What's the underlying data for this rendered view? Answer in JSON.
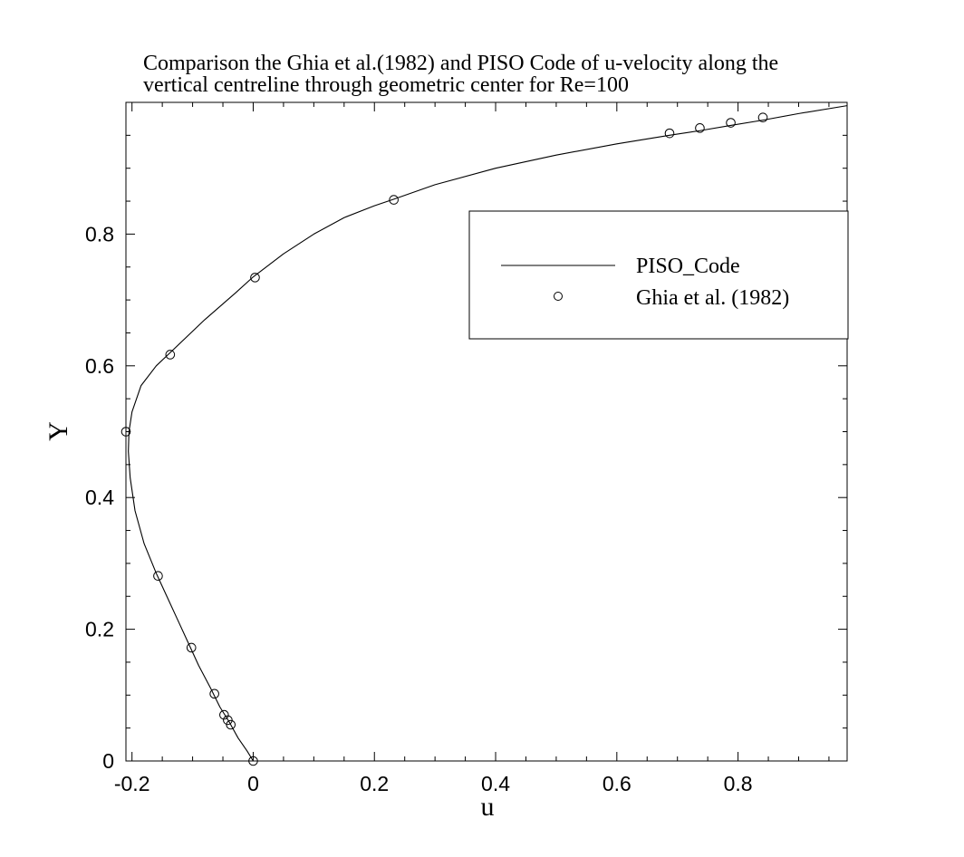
{
  "chart_data": {
    "type": "line",
    "title_line1": "Comparison the Ghia et al.(1982) and PISO Code of u-velocity along the",
    "title_line2": "vertical centreline through geometric center for Re=100",
    "xlabel": "u",
    "ylabel": "Y",
    "xlim": [
      -0.21,
      0.98
    ],
    "ylim": [
      0,
      1.0
    ],
    "x_ticks": [
      -0.2,
      0,
      0.2,
      0.4,
      0.6,
      0.8
    ],
    "x_tick_labels": [
      "-0.2",
      "0",
      "0.2",
      "0.4",
      "0.6",
      "0.8"
    ],
    "y_ticks": [
      0,
      0.2,
      0.4,
      0.6,
      0.8
    ],
    "y_tick_labels": [
      "0",
      "0.2",
      "0.4",
      "0.6",
      "0.8"
    ],
    "grid": false,
    "legend_position": "upper-right",
    "series": [
      {
        "name": "PISO_Code",
        "style": "line",
        "color": "#000000",
        "points": [
          [
            0.0,
            0.0
          ],
          [
            -0.01,
            0.015
          ],
          [
            -0.025,
            0.035
          ],
          [
            -0.04,
            0.06
          ],
          [
            -0.055,
            0.082
          ],
          [
            -0.07,
            0.11
          ],
          [
            -0.09,
            0.145
          ],
          [
            -0.105,
            0.175
          ],
          [
            -0.125,
            0.215
          ],
          [
            -0.145,
            0.255
          ],
          [
            -0.16,
            0.285
          ],
          [
            -0.18,
            0.33
          ],
          [
            -0.195,
            0.38
          ],
          [
            -0.203,
            0.43
          ],
          [
            -0.206,
            0.47
          ],
          [
            -0.205,
            0.5
          ],
          [
            -0.2,
            0.53
          ],
          [
            -0.185,
            0.57
          ],
          [
            -0.16,
            0.6
          ],
          [
            -0.137,
            0.62
          ],
          [
            -0.08,
            0.67
          ],
          [
            -0.03,
            0.71
          ],
          [
            0.0,
            0.735
          ],
          [
            0.05,
            0.77
          ],
          [
            0.1,
            0.8
          ],
          [
            0.15,
            0.825
          ],
          [
            0.2,
            0.843
          ],
          [
            0.232,
            0.853
          ],
          [
            0.3,
            0.875
          ],
          [
            0.4,
            0.9
          ],
          [
            0.5,
            0.92
          ],
          [
            0.6,
            0.937
          ],
          [
            0.687,
            0.95
          ],
          [
            0.737,
            0.957
          ],
          [
            0.788,
            0.965
          ],
          [
            0.841,
            0.973
          ],
          [
            0.9,
            0.983
          ],
          [
            0.98,
            0.995
          ]
        ]
      },
      {
        "name": "Ghia et al. (1982)",
        "style": "markers",
        "marker": "circle",
        "color": "#000000",
        "points": [
          [
            0.0,
            0.0
          ],
          [
            -0.037,
            0.055
          ],
          [
            -0.042,
            0.062
          ],
          [
            -0.048,
            0.07
          ],
          [
            -0.064,
            0.102
          ],
          [
            -0.102,
            0.172
          ],
          [
            -0.157,
            0.281
          ],
          [
            -0.21,
            0.5
          ],
          [
            -0.137,
            0.617
          ],
          [
            0.003,
            0.734
          ],
          [
            0.232,
            0.852
          ],
          [
            0.687,
            0.953
          ],
          [
            0.737,
            0.961
          ],
          [
            0.788,
            0.969
          ],
          [
            0.841,
            0.977
          ]
        ]
      }
    ]
  }
}
